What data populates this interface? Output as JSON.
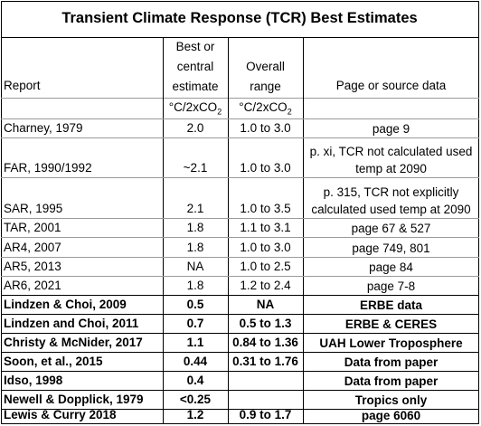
{
  "title": "Transient Climate Response (TCR) Best Estimates",
  "headers": {
    "report": "Report",
    "estimate": [
      "Best or",
      "central",
      "estimate"
    ],
    "range": [
      "Overall",
      "range"
    ],
    "source": "Page or source data",
    "unit_estimate": "°C/2xCO",
    "unit_range": "°C/2xCO",
    "unit_sub": "2"
  },
  "rows": [
    {
      "report": "Charney, 1979",
      "estimate": "2.0",
      "range": "1.0 to 3.0",
      "source": [
        "page 9"
      ],
      "bold": false
    },
    {
      "report": "FAR, 1990/1992",
      "estimate": "~2.1",
      "range": "1.0 to 3.0",
      "source": [
        "p. xi, TCR not calculated used",
        "temp at 2090"
      ],
      "bold": false
    },
    {
      "report": "SAR, 1995",
      "estimate": "2.1",
      "range": "1.0 to 3.5",
      "source": [
        "p. 315, TCR not explicitly",
        "calculated used temp at 2090"
      ],
      "bold": false
    },
    {
      "report": "TAR, 2001",
      "estimate": "1.8",
      "range": "1.1 to 3.1",
      "source": [
        "page 67 & 527"
      ],
      "bold": false
    },
    {
      "report": "AR4, 2007",
      "estimate": "1.8",
      "range": "1.0 to 3.0",
      "source": [
        "page 749, 801"
      ],
      "bold": false
    },
    {
      "report": "AR5, 2013",
      "estimate": "NA",
      "range": "1.0 to 2.5",
      "source": [
        "page 84"
      ],
      "bold": false
    },
    {
      "report": "AR6, 2021",
      "estimate": "1.8",
      "range": "1.2 to 2.4",
      "source": [
        "page 7-8"
      ],
      "bold": false
    },
    {
      "report": "Lindzen & Choi, 2009",
      "estimate": "0.5",
      "range": "NA",
      "source": [
        "ERBE data"
      ],
      "bold": true
    },
    {
      "report": "Lindzen and Choi, 2011",
      "estimate": "0.7",
      "range": "0.5 to 1.3",
      "source": [
        "ERBE & CERES"
      ],
      "bold": true
    },
    {
      "report": "Christy & McNider, 2017",
      "estimate": "1.1",
      "range": "0.84 to 1.36",
      "source": [
        "UAH Lower Troposphere"
      ],
      "bold": true
    },
    {
      "report": "Soon, et al., 2015",
      "estimate": "0.44",
      "range": "0.31 to 1.76",
      "source": [
        "Data from paper"
      ],
      "bold": true
    },
    {
      "report": "Idso, 1998",
      "estimate": "0.4",
      "range": "",
      "source": [
        "Data from paper"
      ],
      "bold": true
    },
    {
      "report": "Newell & Dopplick, 1979",
      "estimate": "<0.25",
      "range": "",
      "source": [
        "Tropics only"
      ],
      "bold": true
    },
    {
      "report": "Lewis & Curry 2018",
      "estimate": "1.2",
      "range": "0.9 to 1.7",
      "source": [
        "page 6060"
      ],
      "bold": true
    }
  ]
}
